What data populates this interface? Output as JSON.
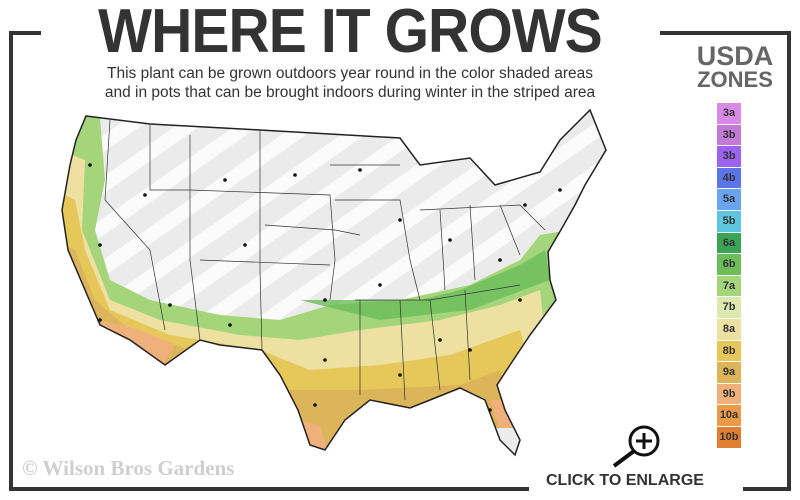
{
  "header": {
    "title": "WHERE IT GROWS",
    "subtitle_line1": "This plant can be grown outdoors year round in the color shaded areas",
    "subtitle_line2": "and in pots that can be brought indoors during winter in the striped area"
  },
  "legend": {
    "title_line1": "USDA",
    "title_line2": "ZONES",
    "zones": [
      {
        "label": "3a",
        "color": "#d98ae6"
      },
      {
        "label": "3b",
        "color": "#c27ad6"
      },
      {
        "label": "3b",
        "color": "#9b63ee"
      },
      {
        "label": "4b",
        "color": "#5b74e8"
      },
      {
        "label": "5a",
        "color": "#6aa3f2"
      },
      {
        "label": "5b",
        "color": "#5ec6df"
      },
      {
        "label": "6a",
        "color": "#3aa356"
      },
      {
        "label": "6b",
        "color": "#6cbd5a"
      },
      {
        "label": "7a",
        "color": "#a5d57a"
      },
      {
        "label": "7b",
        "color": "#dde8b0"
      },
      {
        "label": "8a",
        "color": "#ede0a0"
      },
      {
        "label": "8b",
        "color": "#e6c75a"
      },
      {
        "label": "9a",
        "color": "#dcb45a"
      },
      {
        "label": "9b",
        "color": "#f0b07c"
      },
      {
        "label": "10a",
        "color": "#ea9a48"
      },
      {
        "label": "10b",
        "color": "#e07f30"
      }
    ]
  },
  "watermark": "© Wilson Bros Gardens",
  "enlarge": {
    "label": "CLICK TO ENLARGE",
    "icon": "zoom-in-icon"
  }
}
